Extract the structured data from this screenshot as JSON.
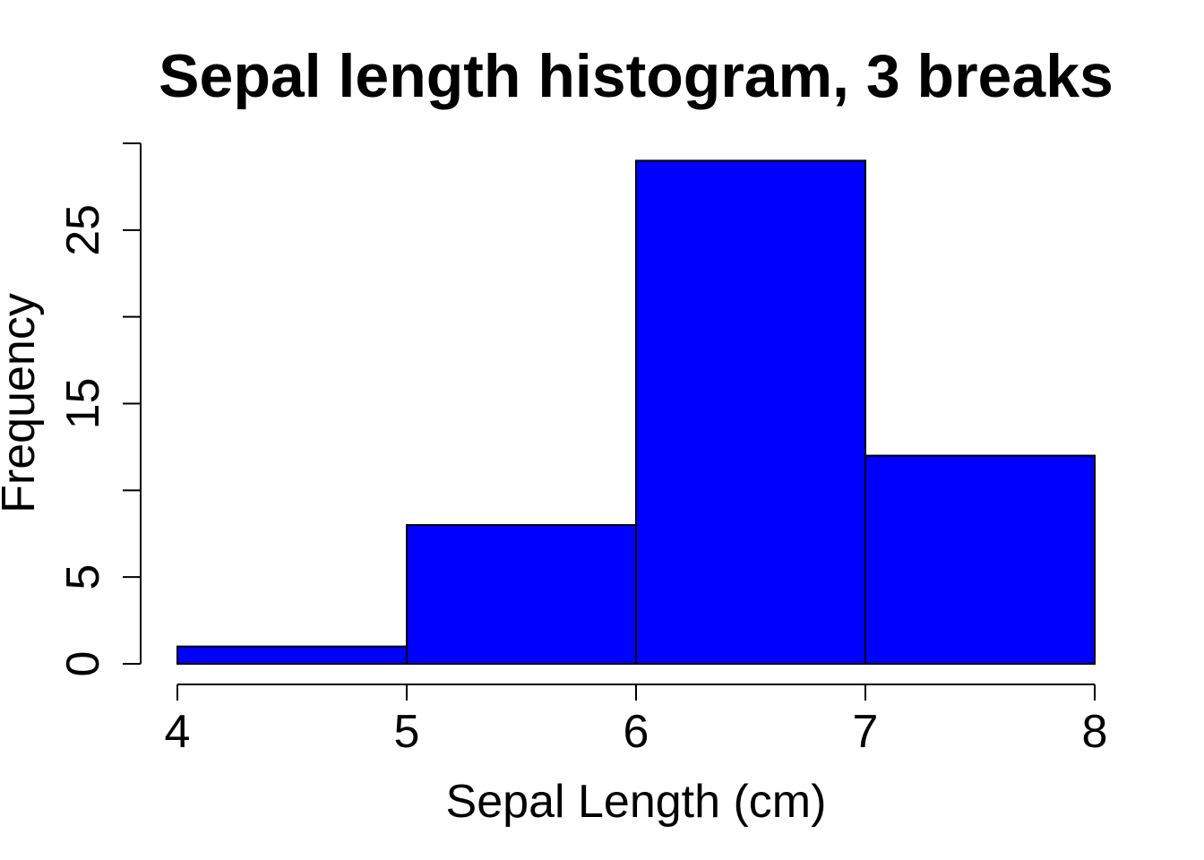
{
  "chart_data": {
    "type": "bar",
    "title": "Sepal length histogram, 3 breaks",
    "xlabel": "Sepal Length (cm)",
    "ylabel": "Frequency",
    "bins": [
      {
        "x0": 4,
        "x1": 5,
        "count": 1
      },
      {
        "x0": 5,
        "x1": 6,
        "count": 8
      },
      {
        "x0": 6,
        "x1": 7,
        "count": 29
      },
      {
        "x0": 7,
        "x1": 8,
        "count": 12
      }
    ],
    "xlim": [
      4,
      8
    ],
    "ylim": [
      0,
      30
    ],
    "x_ticks": [
      4,
      5,
      6,
      7,
      8
    ],
    "x_tick_labels": [
      "4",
      "5",
      "6",
      "7",
      "8"
    ],
    "y_ticks": [
      0,
      5,
      10,
      15,
      20,
      25,
      30
    ],
    "y_tick_labels": [
      "0",
      "5",
      "",
      "15",
      "",
      "25",
      ""
    ],
    "bar_color": "#0000ff",
    "edge_color": "#000000",
    "grid": false,
    "legend": "none"
  }
}
